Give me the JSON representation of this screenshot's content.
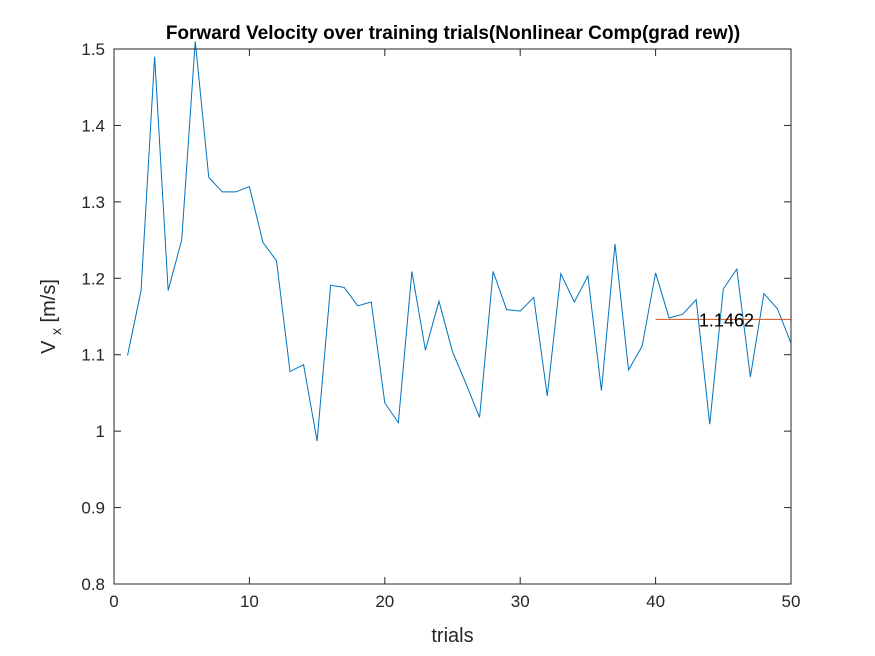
{
  "chart_data": {
    "type": "line",
    "title": "Forward Velocity over training trials(Nonlinear Comp(grad rew))",
    "xlabel": "trials",
    "ylabel_main": "V",
    "ylabel_sub": "x",
    "ylabel_unit": "[m/s]",
    "xlim": [
      0,
      50
    ],
    "ylim": [
      0.8,
      1.5
    ],
    "xticks": [
      0,
      10,
      20,
      30,
      40,
      50
    ],
    "xtick_labels": [
      "0",
      "10",
      "20",
      "30",
      "40",
      "50"
    ],
    "yticks": [
      0.8,
      0.9,
      1.0,
      1.1,
      1.2,
      1.3,
      1.4,
      1.5
    ],
    "ytick_labels": [
      "0.8",
      "0.9",
      "1",
      "1.1",
      "1.2",
      "1.3",
      "1.4",
      "1.5"
    ],
    "grid": false,
    "series": [
      {
        "color": "#0072BD",
        "x": [
          1,
          2,
          3,
          4,
          5,
          6,
          7,
          8,
          9,
          10,
          11,
          12,
          13,
          14,
          15,
          16,
          17,
          18,
          19,
          20,
          21,
          22,
          23,
          24,
          25,
          26,
          27,
          28,
          29,
          30,
          31,
          32,
          33,
          34,
          35,
          36,
          37,
          38,
          39,
          40,
          41,
          42,
          43,
          44,
          45,
          46,
          47,
          48,
          49,
          50
        ],
        "y": [
          1.099,
          1.184,
          1.49,
          1.184,
          1.25,
          1.51,
          1.332,
          1.313,
          1.313,
          1.32,
          1.247,
          1.223,
          1.078,
          1.087,
          0.987,
          1.191,
          1.188,
          1.164,
          1.169,
          1.037,
          1.011,
          1.209,
          1.106,
          1.17,
          1.104,
          1.062,
          1.018,
          1.209,
          1.159,
          1.157,
          1.175,
          1.046,
          1.206,
          1.169,
          1.203,
          1.053,
          1.245,
          1.08,
          1.111,
          1.207,
          1.148,
          1.153,
          1.172,
          1.009,
          1.186,
          1.212,
          1.071,
          1.18,
          1.16,
          1.115
        ]
      },
      {
        "color": "#D95319",
        "x": [
          40,
          50
        ],
        "y": [
          1.1462,
          1.1462
        ]
      }
    ],
    "annotations": [
      {
        "text": "1.1462",
        "x": 43.2,
        "y": 1.1462
      }
    ]
  }
}
